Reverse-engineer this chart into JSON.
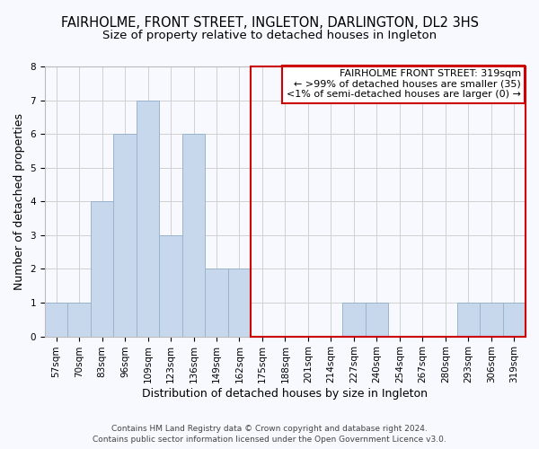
{
  "title": "FAIRHOLME, FRONT STREET, INGLETON, DARLINGTON, DL2 3HS",
  "subtitle": "Size of property relative to detached houses in Ingleton",
  "xlabel": "Distribution of detached houses by size in Ingleton",
  "ylabel": "Number of detached properties",
  "bin_labels": [
    "57sqm",
    "70sqm",
    "83sqm",
    "96sqm",
    "109sqm",
    "123sqm",
    "136sqm",
    "149sqm",
    "162sqm",
    "175sqm",
    "188sqm",
    "201sqm",
    "214sqm",
    "227sqm",
    "240sqm",
    "254sqm",
    "267sqm",
    "280sqm",
    "293sqm",
    "306sqm",
    "319sqm"
  ],
  "bar_values": [
    1,
    1,
    4,
    6,
    7,
    3,
    6,
    2,
    2,
    0,
    0,
    0,
    0,
    1,
    1,
    0,
    0,
    0,
    1,
    1,
    1
  ],
  "bar_color": "#c8d8ec",
  "bar_edgecolor": "#9ab4cc",
  "ylim": [
    0,
    8
  ],
  "yticks": [
    0,
    1,
    2,
    3,
    4,
    5,
    6,
    7,
    8
  ],
  "grid_color": "#d0d0d0",
  "legend_title": "FAIRHOLME FRONT STREET: 319sqm",
  "legend_line1": "← >99% of detached houses are smaller (35)",
  "legend_line2": "<1% of semi-detached houses are larger (0) →",
  "legend_box_facecolor": "#ffffff",
  "legend_border_color": "#cc0000",
  "footer_line1": "Contains HM Land Registry data © Crown copyright and database right 2024.",
  "footer_line2": "Contains public sector information licensed under the Open Government Licence v3.0.",
  "bg_color": "#f8f8ff",
  "title_fontsize": 10.5,
  "subtitle_fontsize": 9.5,
  "axis_label_fontsize": 9,
  "tick_fontsize": 7.5,
  "legend_fontsize": 8,
  "footer_fontsize": 6.5
}
